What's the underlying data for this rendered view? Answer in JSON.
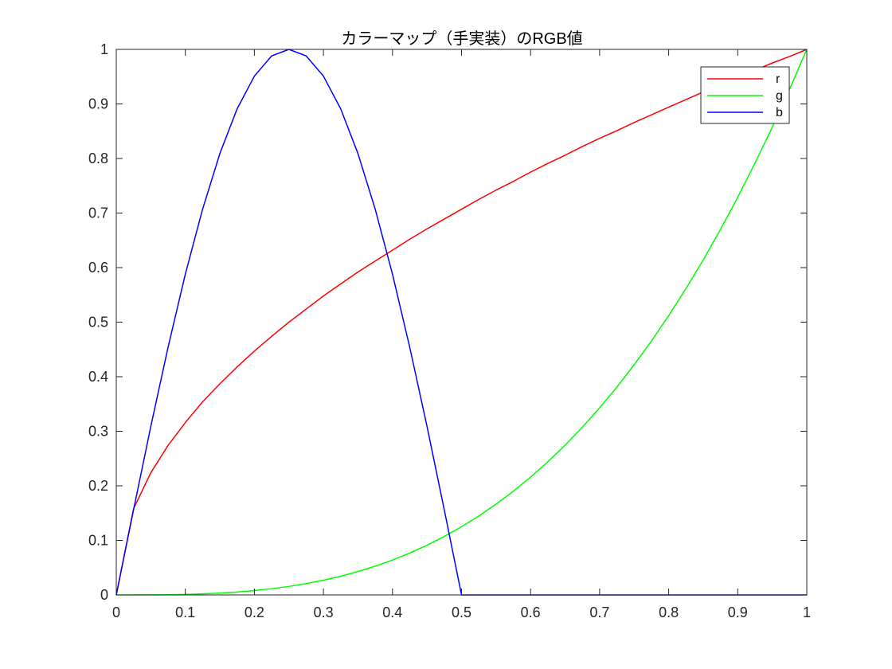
{
  "chart_data": {
    "type": "line",
    "title": "カラーマップ（手実装）のRGB値",
    "xlabel": "",
    "ylabel": "",
    "xlim": [
      0,
      1
    ],
    "ylim": [
      0,
      1
    ],
    "x_ticks": [
      "0",
      "0.1",
      "0.2",
      "0.3",
      "0.4",
      "0.5",
      "0.6",
      "0.7",
      "0.8",
      "0.9",
      "1"
    ],
    "y_ticks": [
      "0",
      "0.1",
      "0.2",
      "0.3",
      "0.4",
      "0.5",
      "0.6",
      "0.7",
      "0.8",
      "0.9",
      "1"
    ],
    "grid": false,
    "legend_position": "top-right",
    "x": [
      0,
      0.025,
      0.05,
      0.075,
      0.1,
      0.125,
      0.15,
      0.175,
      0.2,
      0.225,
      0.25,
      0.275,
      0.3,
      0.325,
      0.35,
      0.375,
      0.4,
      0.425,
      0.45,
      0.475,
      0.5,
      0.525,
      0.55,
      0.575,
      0.6,
      0.625,
      0.65,
      0.675,
      0.7,
      0.725,
      0.75,
      0.775,
      0.8,
      0.825,
      0.85,
      0.875,
      0.9,
      0.925,
      0.95,
      0.975,
      1
    ],
    "series": [
      {
        "name": "r",
        "color": "#ff0000",
        "values": [
          0,
          0.158,
          0.224,
          0.274,
          0.316,
          0.354,
          0.387,
          0.418,
          0.447,
          0.474,
          0.5,
          0.524,
          0.548,
          0.57,
          0.592,
          0.612,
          0.632,
          0.652,
          0.671,
          0.689,
          0.707,
          0.725,
          0.742,
          0.758,
          0.775,
          0.791,
          0.806,
          0.822,
          0.837,
          0.851,
          0.866,
          0.88,
          0.894,
          0.908,
          0.922,
          0.935,
          0.949,
          0.962,
          0.975,
          0.987,
          1
        ]
      },
      {
        "name": "g",
        "color": "#00ff00",
        "values": [
          0,
          1.6e-05,
          0.000125,
          0.00042,
          0.001,
          0.00195,
          0.00338,
          0.00536,
          0.008,
          0.0114,
          0.0156,
          0.0208,
          0.027,
          0.0343,
          0.0429,
          0.0527,
          0.064,
          0.0768,
          0.0911,
          0.1072,
          0.125,
          0.1447,
          0.1664,
          0.1901,
          0.216,
          0.2441,
          0.2746,
          0.3075,
          0.343,
          0.3811,
          0.4219,
          0.4655,
          0.512,
          0.5615,
          0.6141,
          0.6699,
          0.729,
          0.7915,
          0.8574,
          0.9269,
          1
        ]
      },
      {
        "name": "b",
        "color": "#0000ff",
        "values": [
          0,
          0.156,
          0.309,
          0.454,
          0.588,
          0.707,
          0.809,
          0.891,
          0.951,
          0.988,
          1,
          0.988,
          0.951,
          0.891,
          0.809,
          0.707,
          0.588,
          0.454,
          0.309,
          0.156,
          0,
          0,
          0,
          0,
          0,
          0,
          0,
          0,
          0,
          0,
          0,
          0,
          0,
          0,
          0,
          0,
          0,
          0,
          0,
          0,
          0
        ]
      }
    ]
  }
}
